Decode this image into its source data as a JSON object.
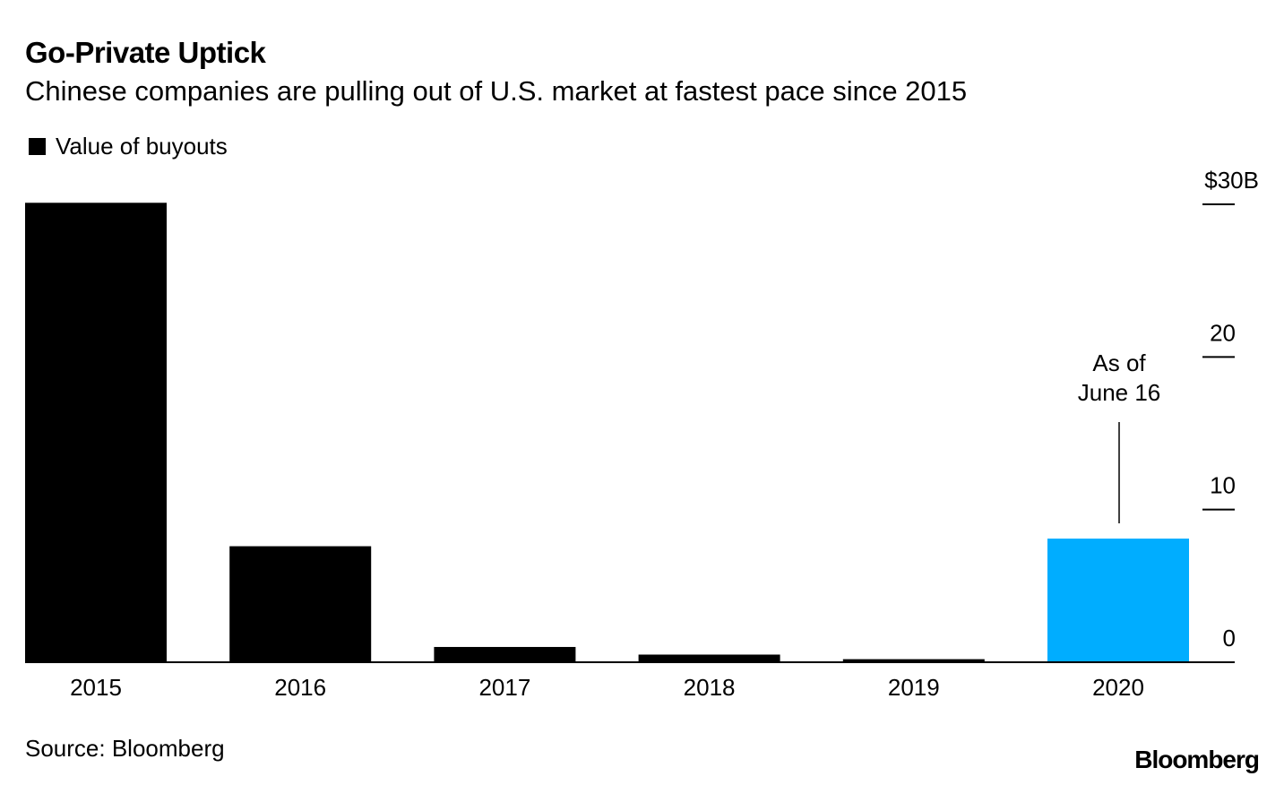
{
  "header": {
    "title": "Go-Private Uptick",
    "subtitle": "Chinese companies are pulling out of U.S. market at fastest pace since 2015"
  },
  "legend": {
    "label": "Value of buyouts"
  },
  "annotation": {
    "line1": "As of",
    "line2": "June 16"
  },
  "footer": {
    "source": "Source: Bloomberg",
    "brand": "Bloomberg"
  },
  "colors": {
    "bar": "#000000",
    "highlight": "#00adff",
    "text": "#000000",
    "background": "#ffffff"
  },
  "chart_data": {
    "type": "bar",
    "title": "Go-Private Uptick",
    "subtitle": "Chinese companies are pulling out of U.S. market at fastest pace since 2015",
    "categories": [
      "2015",
      "2016",
      "2017",
      "2018",
      "2019",
      "2020"
    ],
    "series": [
      {
        "name": "Value of buyouts",
        "values": [
          30.1,
          7.6,
          1.0,
          0.5,
          0.2,
          8.1
        ]
      }
    ],
    "highlight_category": "2020",
    "ylim": [
      0,
      30
    ],
    "yticks": [
      0,
      10,
      20,
      30
    ],
    "ytick_labels": [
      "0",
      "10",
      "20",
      "$30B"
    ],
    "ylabel": "",
    "xlabel": "",
    "grid": false,
    "legend_position": "top-left",
    "axis_position": "right"
  }
}
